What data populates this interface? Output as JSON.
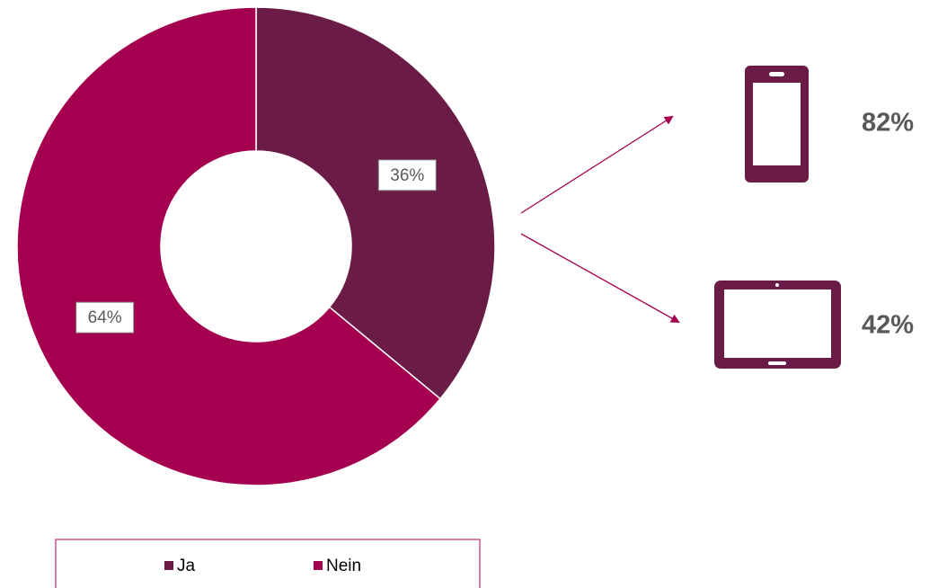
{
  "chart_data": {
    "type": "donut",
    "categories": [
      "Ja",
      "Nein"
    ],
    "values": [
      36,
      64
    ],
    "value_labels": [
      "36%",
      "64%"
    ],
    "colors": [
      "#6a1c46",
      "#a50050"
    ],
    "legend": "bottom",
    "annotations": [
      "82%",
      "42%"
    ]
  }
}
